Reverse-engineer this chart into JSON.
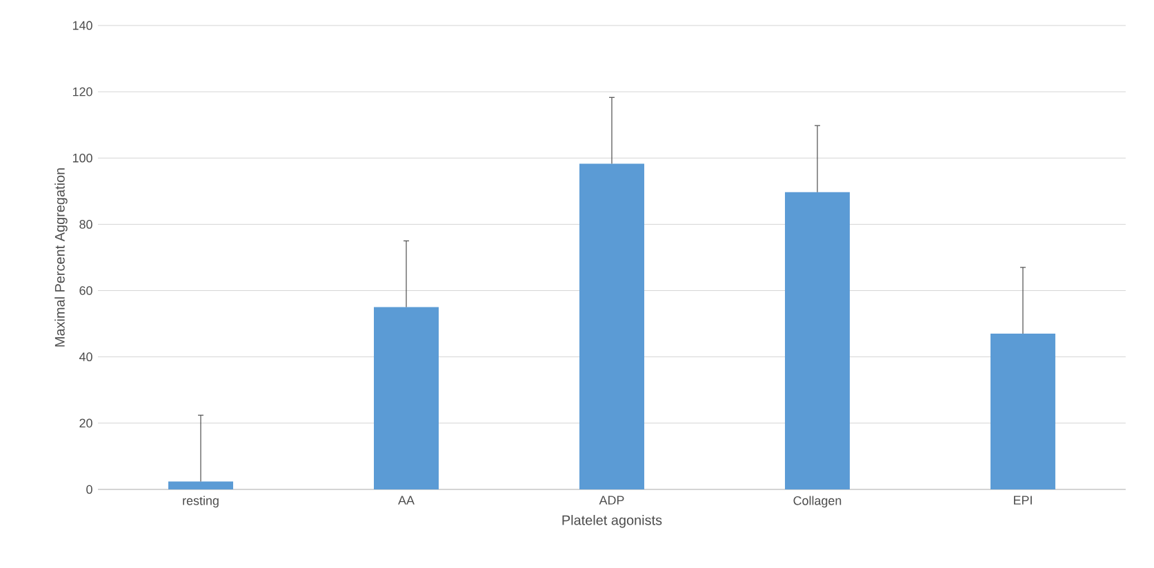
{
  "chart_data": {
    "type": "bar",
    "xlabel": "Platelet agonists",
    "ylabel": "Maximal Percent Aggregation",
    "categories": [
      "resting",
      "AA",
      "ADP",
      "Collagen",
      "EPI"
    ],
    "values": [
      2.4,
      55,
      98.3,
      89.7,
      47
    ],
    "errors": [
      [
        2.4,
        22.4
      ],
      [
        55,
        75
      ],
      [
        98.3,
        118.3
      ],
      [
        89.7,
        109.8
      ],
      [
        47,
        67
      ]
    ],
    "color": "#5b9bd5",
    "ylim": [
      0,
      140
    ],
    "yticks": [
      0,
      20,
      40,
      60,
      80,
      100,
      120,
      140
    ],
    "grid": "y"
  }
}
